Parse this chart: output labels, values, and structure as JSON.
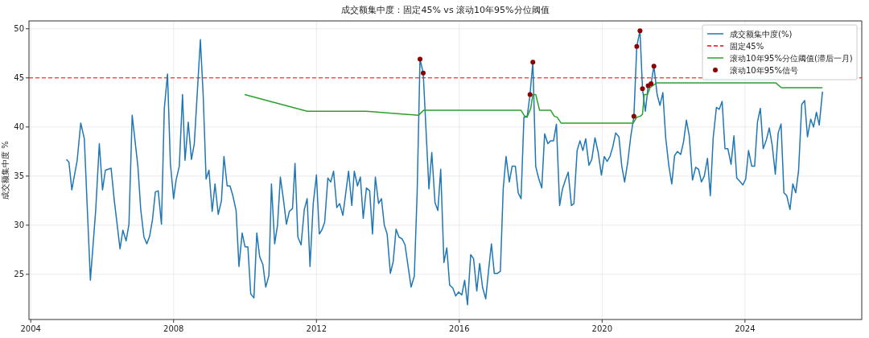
{
  "chart_data": {
    "type": "line",
    "title": "成交额集中度：固定45% vs 滚动10年95%分位阈值",
    "ylabel": "成交额集中度 %",
    "xlim": [
      2003.95,
      2027.27
    ],
    "ylim": [
      20.4,
      50.8
    ],
    "xticks": [
      2004,
      2008,
      2012,
      2016,
      2020,
      2024
    ],
    "yticks": [
      25,
      30,
      35,
      40,
      45,
      50
    ],
    "grid": true,
    "legend": "top right",
    "ref_lines": [
      {
        "axis": "y",
        "value": 45,
        "label": "固定45%",
        "color": "#ff0000",
        "line_style": "dashed"
      }
    ],
    "series": [
      {
        "name": "成交额集中度(%)",
        "color": "#1f77b4",
        "x": [
          2005.0,
          2005.07,
          2005.15,
          2005.3,
          2005.4,
          2005.5,
          2005.67,
          2005.82,
          2005.92,
          2006.01,
          2006.09,
          2006.25,
          2006.34,
          2006.5,
          2006.58,
          2006.67,
          2006.75,
          2006.84,
          2007.0,
          2007.08,
          2007.17,
          2007.25,
          2007.33,
          2007.41,
          2007.49,
          2007.57,
          2007.66,
          2007.74,
          2007.83,
          2007.91,
          2008.0,
          2008.07,
          2008.16,
          2008.25,
          2008.32,
          2008.41,
          2008.5,
          2008.58,
          2008.75,
          2008.83,
          2008.91,
          2008.99,
          2009.08,
          2009.16,
          2009.25,
          2009.34,
          2009.41,
          2009.5,
          2009.58,
          2009.66,
          2009.75,
          2009.83,
          2009.92,
          2010.0,
          2010.08,
          2010.16,
          2010.25,
          2010.33,
          2010.41,
          2010.5,
          2010.58,
          2010.67,
          2010.74,
          2010.83,
          2010.91,
          2010.99,
          2011.08,
          2011.16,
          2011.24,
          2011.33,
          2011.4,
          2011.48,
          2011.57,
          2011.66,
          2011.74,
          2011.82,
          2011.91,
          2012.0,
          2012.08,
          2012.15,
          2012.23,
          2012.32,
          2012.4,
          2012.48,
          2012.57,
          2012.65,
          2012.74,
          2012.9,
          2012.99,
          2013.06,
          2013.15,
          2013.23,
          2013.31,
          2013.4,
          2013.49,
          2013.57,
          2013.65,
          2013.74,
          2013.82,
          2013.9,
          2013.98,
          2014.07,
          2014.15,
          2014.23,
          2014.31,
          2014.4,
          2014.48,
          2014.65,
          2014.74,
          2014.82,
          2014.9,
          2014.99,
          2015.15,
          2015.23,
          2015.32,
          2015.4,
          2015.48,
          2015.57,
          2015.65,
          2015.73,
          2015.82,
          2015.9,
          2015.98,
          2016.07,
          2016.15,
          2016.23,
          2016.32,
          2016.4,
          2016.49,
          2016.57,
          2016.65,
          2016.74,
          2016.82,
          2016.9,
          2016.98,
          2017.07,
          2017.15,
          2017.23,
          2017.31,
          2017.4,
          2017.48,
          2017.57,
          2017.65,
          2017.73,
          2017.81,
          2017.9,
          2017.98,
          2018.06,
          2018.14,
          2018.22,
          2018.31,
          2018.39,
          2018.48,
          2018.56,
          2018.64,
          2018.72,
          2018.81,
          2018.89,
          2018.97,
          2019.05,
          2019.14,
          2019.21,
          2019.3,
          2019.38,
          2019.46,
          2019.54,
          2019.63,
          2019.71,
          2019.8,
          2019.89,
          2019.98,
          2020.06,
          2020.14,
          2020.22,
          2020.3,
          2020.38,
          2020.47,
          2020.55,
          2020.63,
          2020.72,
          2020.8,
          2020.89,
          2020.97,
          2021.06,
          2021.13,
          2021.21,
          2021.29,
          2021.37,
          2021.45,
          2021.54,
          2021.62,
          2021.7,
          2021.78,
          2021.87,
          2021.95,
          2022.03,
          2022.11,
          2022.2,
          2022.28,
          2022.36,
          2022.44,
          2022.53,
          2022.62,
          2022.7,
          2022.78,
          2022.86,
          2022.95,
          2023.03,
          2023.11,
          2023.2,
          2023.28,
          2023.36,
          2023.44,
          2023.52,
          2023.61,
          2023.69,
          2023.77,
          2023.85,
          2023.94,
          2024.02,
          2024.1,
          2024.19,
          2024.27,
          2024.35,
          2024.43,
          2024.51,
          2024.6,
          2024.68,
          2024.76,
          2024.85,
          2024.93,
          2025.01,
          2025.09,
          2025.17,
          2025.26,
          2025.34,
          2025.42,
          2025.5,
          2025.59,
          2025.67,
          2025.75,
          2025.84,
          2025.92,
          2026.0,
          2026.08,
          2026.17
        ],
        "values": [
          36.7,
          36.4,
          33.6,
          36.6,
          40.4,
          38.8,
          24.4,
          31.6,
          38.3,
          33.6,
          35.6,
          35.8,
          32.5,
          27.6,
          29.5,
          28.4,
          30.1,
          41.2,
          36.0,
          31.6,
          28.8,
          28.1,
          28.9,
          30.6,
          33.4,
          33.5,
          30.1,
          41.9,
          45.4,
          36.3,
          32.7,
          34.6,
          36.0,
          43.3,
          36.6,
          40.5,
          36.7,
          38.3,
          48.9,
          43.1,
          34.7,
          35.6,
          31.4,
          34.2,
          31.1,
          32.5,
          37.0,
          34.0,
          34.0,
          33.0,
          31.5,
          25.8,
          29.2,
          27.8,
          27.8,
          23.0,
          22.6,
          29.2,
          26.8,
          26.0,
          23.7,
          24.9,
          34.2,
          28.1,
          30.0,
          34.9,
          32.5,
          30.1,
          31.4,
          31.7,
          36.3,
          28.8,
          28.0,
          31.6,
          32.7,
          25.8,
          32.2,
          35.1,
          29.1,
          29.5,
          30.3,
          34.8,
          34.4,
          35.5,
          31.8,
          32.2,
          31.0,
          35.5,
          32.0,
          35.5,
          34.0,
          34.9,
          30.7,
          33.8,
          33.5,
          29.1,
          34.9,
          32.2,
          32.7,
          30.0,
          29.1,
          25.1,
          26.3,
          29.6,
          28.8,
          28.6,
          28.0,
          23.7,
          24.8,
          33.3,
          46.9,
          45.5,
          33.7,
          37.4,
          32.3,
          31.5,
          35.7,
          26.2,
          27.7,
          23.9,
          23.6,
          22.8,
          23.2,
          22.9,
          24.4,
          21.9,
          27.0,
          26.6,
          23.3,
          26.1,
          23.7,
          22.5,
          25.4,
          28.1,
          25.1,
          25.1,
          25.3,
          33.7,
          37.0,
          34.4,
          36.0,
          36.0,
          33.3,
          32.7,
          41.0,
          41.0,
          43.3,
          46.6,
          36.0,
          34.8,
          33.8,
          39.3,
          38.3,
          38.6,
          38.6,
          40.3,
          32.0,
          33.7,
          34.6,
          35.4,
          32.0,
          32.2,
          37.6,
          38.6,
          37.6,
          38.8,
          36.1,
          36.7,
          38.9,
          37.4,
          35.1,
          37.0,
          36.5,
          37.0,
          38.0,
          39.4,
          39.0,
          36.0,
          34.4,
          36.5,
          39.0,
          41.1,
          48.2,
          49.8,
          43.9,
          41.6,
          44.2,
          44.4,
          46.2,
          43.3,
          42.2,
          43.5,
          38.9,
          36.0,
          34.2,
          37.1,
          37.5,
          37.2,
          38.5,
          40.7,
          39.1,
          34.6,
          35.9,
          35.7,
          34.4,
          35.0,
          36.8,
          33.0,
          38.9,
          42.0,
          41.8,
          42.6,
          37.8,
          37.8,
          36.2,
          39.1,
          34.8,
          34.5,
          34.1,
          34.7,
          37.6,
          36.0,
          36.0,
          40.5,
          41.9,
          37.8,
          38.7,
          39.9,
          38.2,
          35.2,
          39.4,
          40.3,
          33.3,
          33.0,
          31.6,
          34.2,
          33.3,
          35.5,
          42.3,
          42.7,
          39.0,
          40.8,
          40.0,
          41.5,
          40.2,
          43.6
        ]
      },
      {
        "name": "滚动10年95%分位阈值(滞后一月)",
        "color": "#2ca02c",
        "type": "line",
        "x": [
          2009.99,
          2011.74,
          2013.4,
          2014.86,
          2015.0,
          2017.73,
          2017.83,
          2017.91,
          2018.0,
          2018.06,
          2018.14,
          2018.25,
          2018.56,
          2018.66,
          2018.74,
          2018.85,
          2020.87,
          2020.97,
          2021.07,
          2021.13,
          2021.18,
          2021.27,
          2021.34,
          2021.53,
          2024.86,
          2025.02,
          2026.17
        ],
        "values": [
          43.3,
          41.6,
          41.6,
          41.2,
          41.7,
          41.7,
          41.1,
          41.1,
          41.9,
          43.3,
          43.3,
          41.7,
          41.7,
          41.1,
          41.0,
          40.4,
          40.4,
          41.0,
          41.1,
          41.3,
          43.3,
          43.3,
          44.0,
          44.5,
          44.5,
          44.0,
          44.0
        ]
      },
      {
        "name": "滚动10年95%信号",
        "color": "#8b0000",
        "type": "scatter",
        "marker": "circle",
        "x": [
          2014.9,
          2014.99,
          2017.98,
          2018.06,
          2020.89,
          2020.97,
          2021.06,
          2021.13,
          2021.29,
          2021.37,
          2021.45
        ],
        "values": [
          46.9,
          45.5,
          43.3,
          46.6,
          41.1,
          48.2,
          49.8,
          43.9,
          44.2,
          44.4,
          46.2
        ]
      }
    ]
  }
}
